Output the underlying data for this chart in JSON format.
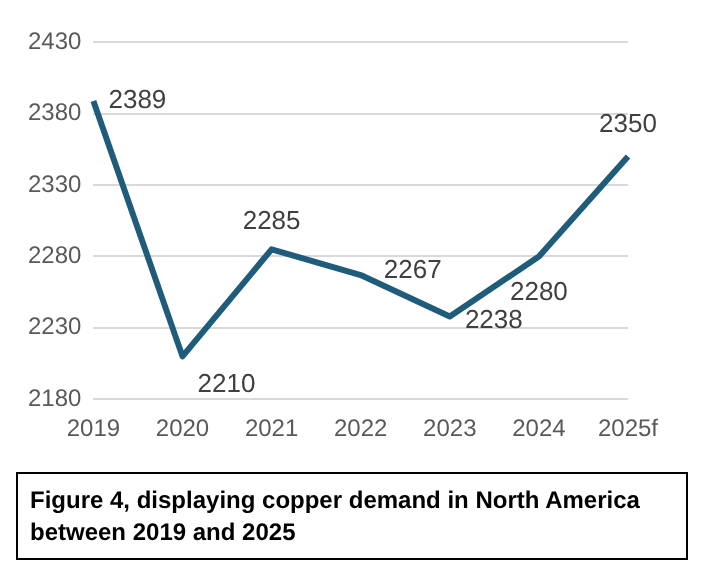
{
  "chart_data": {
    "type": "line",
    "categories": [
      "2019",
      "2020",
      "2021",
      "2022",
      "2023",
      "2024",
      "2025f"
    ],
    "series": [
      {
        "color": "#1f5c7a",
        "values": [
          2389,
          2210,
          2285,
          2267,
          2238,
          2280,
          2350
        ]
      }
    ],
    "ylim": [
      2180,
      2430
    ],
    "yticks": [
      2180,
      2230,
      2280,
      2330,
      2380,
      2430
    ],
    "grid": "y",
    "legend": false,
    "marker": "none",
    "line_style": "solid",
    "data_labels": true,
    "annotations": [
      "Figure 4, displaying copper demand in North America between 2019 and 2025"
    ]
  }
}
